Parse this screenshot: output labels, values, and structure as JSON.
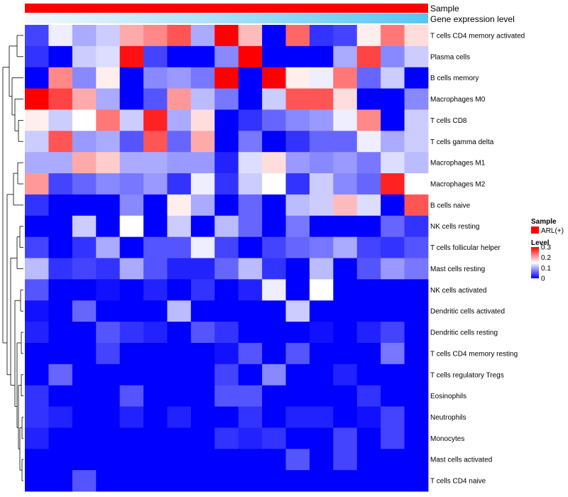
{
  "chart_data": {
    "type": "heatmap",
    "top_annotations": [
      {
        "name": "Sample",
        "color": "#ff0000"
      },
      {
        "name": "Gene expression level",
        "gradient": [
          "#f4f9fd",
          "#58c6f2"
        ]
      }
    ],
    "rows": [
      "T cells CD4 memory activated",
      "Plasma cells",
      "B cells memory",
      "Macrophages M0",
      "T cells CD8",
      "T cells gamma delta",
      "Macrophages M1",
      "Macrophages M2",
      "B cells naive",
      "NK cells resting",
      "T cells follicular helper",
      "Mast cells resting",
      "NK cells activated",
      "Dendritic cells activated",
      "Dendritic cells resting",
      "T cells CD4 memory resting",
      "T cells regulatory  Tregs",
      "Eosinophils",
      "Neutrophils",
      "Monocytes",
      "Mast cells activated",
      "T cells CD4 naive"
    ],
    "n_columns": 17,
    "values": [
      [
        0.04,
        0.14,
        0.1,
        0.12,
        0.2,
        0.22,
        0.25,
        0.1,
        0.3,
        0.19,
        0.0,
        0.24,
        0.03,
        0.04,
        0.16,
        0.23,
        0.17
      ],
      [
        0.03,
        0.0,
        0.12,
        0.13,
        0.29,
        0.04,
        0.0,
        0.0,
        0.08,
        0.3,
        0.0,
        0.0,
        0.0,
        0.1,
        0.26,
        0.08,
        0.12
      ],
      [
        0.0,
        0.22,
        0.08,
        0.16,
        0.0,
        0.08,
        0.09,
        0.07,
        0.3,
        0.0,
        0.3,
        0.16,
        0.14,
        0.23,
        0.06,
        0.12,
        0.0
      ],
      [
        0.3,
        0.26,
        0.2,
        0.1,
        0.0,
        0.05,
        0.21,
        0.11,
        0.07,
        0.0,
        0.12,
        0.25,
        0.25,
        0.17,
        0.0,
        0.0,
        0.08
      ],
      [
        0.16,
        0.12,
        0.15,
        0.23,
        0.12,
        0.28,
        0.1,
        0.17,
        0.0,
        0.03,
        0.06,
        0.08,
        0.09,
        0.14,
        0.22,
        0.0,
        0.12
      ],
      [
        0.12,
        0.25,
        0.09,
        0.1,
        0.05,
        0.25,
        0.06,
        0.2,
        0.0,
        0.07,
        0.0,
        0.03,
        0.06,
        0.06,
        0.14,
        0.1,
        0.12
      ],
      [
        0.1,
        0.1,
        0.2,
        0.18,
        0.1,
        0.1,
        0.09,
        0.09,
        0.02,
        0.13,
        0.17,
        0.09,
        0.08,
        0.09,
        0.07,
        0.13,
        0.11
      ],
      [
        0.21,
        0.04,
        0.06,
        0.08,
        0.07,
        0.09,
        0.03,
        0.14,
        0.03,
        0.12,
        0.15,
        0.03,
        0.12,
        0.08,
        0.06,
        0.28,
        0.15
      ],
      [
        0.03,
        0.0,
        0.0,
        0.0,
        0.08,
        0.0,
        0.16,
        0.1,
        0.0,
        0.06,
        0.0,
        0.11,
        0.12,
        0.19,
        0.13,
        0.0,
        0.25
      ],
      [
        0.0,
        0.0,
        0.12,
        0.0,
        0.15,
        0.0,
        0.12,
        0.0,
        0.11,
        0.06,
        0.0,
        0.07,
        0.0,
        0.0,
        0.0,
        0.06,
        0.03
      ],
      [
        0.04,
        0.0,
        0.03,
        0.1,
        0.0,
        0.05,
        0.05,
        0.14,
        0.04,
        0.0,
        0.04,
        0.06,
        0.07,
        0.1,
        0.04,
        0.03,
        0.05
      ],
      [
        0.11,
        0.03,
        0.04,
        0.03,
        0.1,
        0.05,
        0.02,
        0.02,
        0.06,
        0.11,
        0.03,
        0.0,
        0.11,
        0.0,
        0.05,
        0.09,
        0.07
      ],
      [
        0.05,
        0.0,
        0.0,
        0.01,
        0.0,
        0.02,
        0.0,
        0.03,
        0.0,
        0.02,
        0.14,
        0.0,
        0.15,
        0.0,
        0.0,
        0.0,
        0.0
      ],
      [
        0.01,
        0.0,
        0.06,
        0.0,
        0.0,
        0.0,
        0.11,
        0.0,
        0.0,
        0.0,
        0.0,
        0.12,
        0.0,
        0.0,
        0.0,
        0.0,
        0.0
      ],
      [
        0.02,
        0.0,
        0.0,
        0.05,
        0.03,
        0.02,
        0.0,
        0.05,
        0.03,
        0.0,
        0.0,
        0.0,
        0.01,
        0.0,
        0.02,
        0.04,
        0.0
      ],
      [
        0.0,
        0.0,
        0.0,
        0.04,
        0.0,
        0.0,
        0.0,
        0.0,
        0.01,
        0.05,
        0.0,
        0.05,
        0.0,
        0.0,
        0.0,
        0.07,
        0.0
      ],
      [
        0.0,
        0.06,
        0.0,
        0.0,
        0.0,
        0.0,
        0.0,
        0.0,
        0.04,
        0.0,
        0.08,
        0.0,
        0.0,
        0.02,
        0.0,
        0.0,
        0.0
      ],
      [
        0.03,
        0.0,
        0.0,
        0.0,
        0.05,
        0.0,
        0.0,
        0.0,
        0.05,
        0.05,
        0.0,
        0.0,
        0.0,
        0.0,
        0.03,
        0.0,
        0.0
      ],
      [
        0.03,
        0.02,
        0.0,
        0.0,
        0.02,
        0.0,
        0.02,
        0.0,
        0.0,
        0.03,
        0.0,
        0.02,
        0.02,
        0.0,
        0.01,
        0.04,
        0.0
      ],
      [
        0.02,
        0.0,
        0.0,
        0.0,
        0.0,
        0.0,
        0.0,
        0.0,
        0.03,
        0.02,
        0.03,
        0.0,
        0.0,
        0.04,
        0.0,
        0.04,
        0.0
      ],
      [
        0.0,
        0.0,
        0.0,
        0.0,
        0.0,
        0.0,
        0.0,
        0.0,
        0.0,
        0.0,
        0.0,
        0.05,
        0.0,
        0.04,
        0.0,
        0.0,
        0.0
      ],
      [
        0.0,
        0.0,
        0.05,
        0.0,
        0.0,
        0.0,
        0.0,
        0.0,
        0.0,
        0.0,
        0.0,
        0.0,
        0.0,
        0.0,
        0.0,
        0.0,
        0.0
      ]
    ],
    "color_scale": {
      "min": 0,
      "mid": 0.15,
      "max": 0.3,
      "low": "#0000ff",
      "midcolor": "#ffffff",
      "high": "#ff0000"
    },
    "row_dendrogram": true,
    "legend": {
      "sample_title": "Sample",
      "sample_item": "ARL(+)",
      "sample_color": "#ff0000",
      "level_title": "Level",
      "ticks": [
        0.3,
        0.2,
        0.1,
        0
      ],
      "tick_labels": [
        "0.3",
        "0.2",
        "0.1",
        "0"
      ],
      "placement": "right"
    }
  }
}
